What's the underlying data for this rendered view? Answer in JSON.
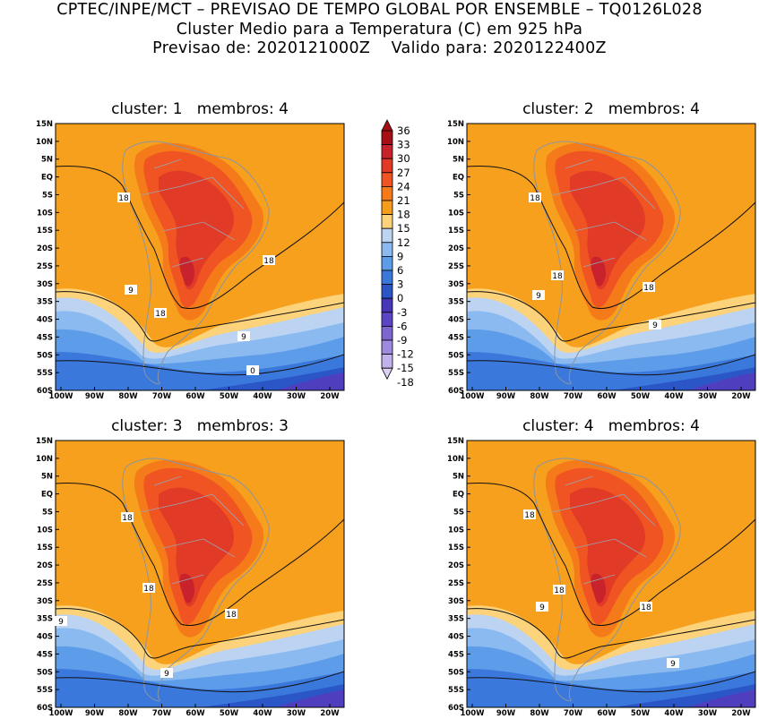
{
  "header": {
    "line1": "CPTEC/INPE/MCT – PREVISAO DE TEMPO GLOBAL POR ENSEMBLE – TQ0126L028",
    "line2": "Cluster Medio para a Temperatura (C) em 925 hPa",
    "line3": "Previsao de: 2020121000Z    Valido para: 2020122400Z"
  },
  "panels": [
    {
      "title": "cluster: 1   membros: 4",
      "contour_labels": [
        "18",
        "18",
        "9",
        "18",
        "9",
        "0"
      ]
    },
    {
      "title": "cluster: 2   membros: 4",
      "contour_labels": [
        "18",
        "18",
        "9",
        "18",
        "9"
      ]
    },
    {
      "title": "cluster: 3   membros: 3",
      "contour_labels": [
        "18",
        "18",
        "18",
        "9",
        "9"
      ]
    },
    {
      "title": "cluster: 4   membros: 4",
      "contour_labels": [
        "18",
        "18",
        "9",
        "18",
        "9"
      ]
    }
  ],
  "lat_ticks": [
    "15N",
    "10N",
    "5N",
    "EQ",
    "5S",
    "10S",
    "15S",
    "20S",
    "25S",
    "30S",
    "35S",
    "40S",
    "45S",
    "50S",
    "55S",
    "60S"
  ],
  "lon_ticks": [
    "100W",
    "90W",
    "80W",
    "70W",
    "60W",
    "50W",
    "40W",
    "30W",
    "20W"
  ],
  "colorbar": {
    "labels": [
      "36",
      "33",
      "30",
      "27",
      "24",
      "21",
      "18",
      "15",
      "12",
      "9",
      "6",
      "3",
      "0",
      "-3",
      "-6",
      "-9",
      "-12",
      "-15",
      "-18"
    ],
    "colors": [
      "#a50f15",
      "#c8232c",
      "#e13a26",
      "#f05423",
      "#f57a1a",
      "#f79d1c",
      "#fcd27a",
      "#bcd4f2",
      "#8bbaf0",
      "#5d9ce8",
      "#3b78dc",
      "#2b56c8",
      "#4537b8",
      "#5b45c4",
      "#7d66d0",
      "#a08ae0",
      "#c2b2ec",
      "#dcd2f5"
    ]
  }
}
